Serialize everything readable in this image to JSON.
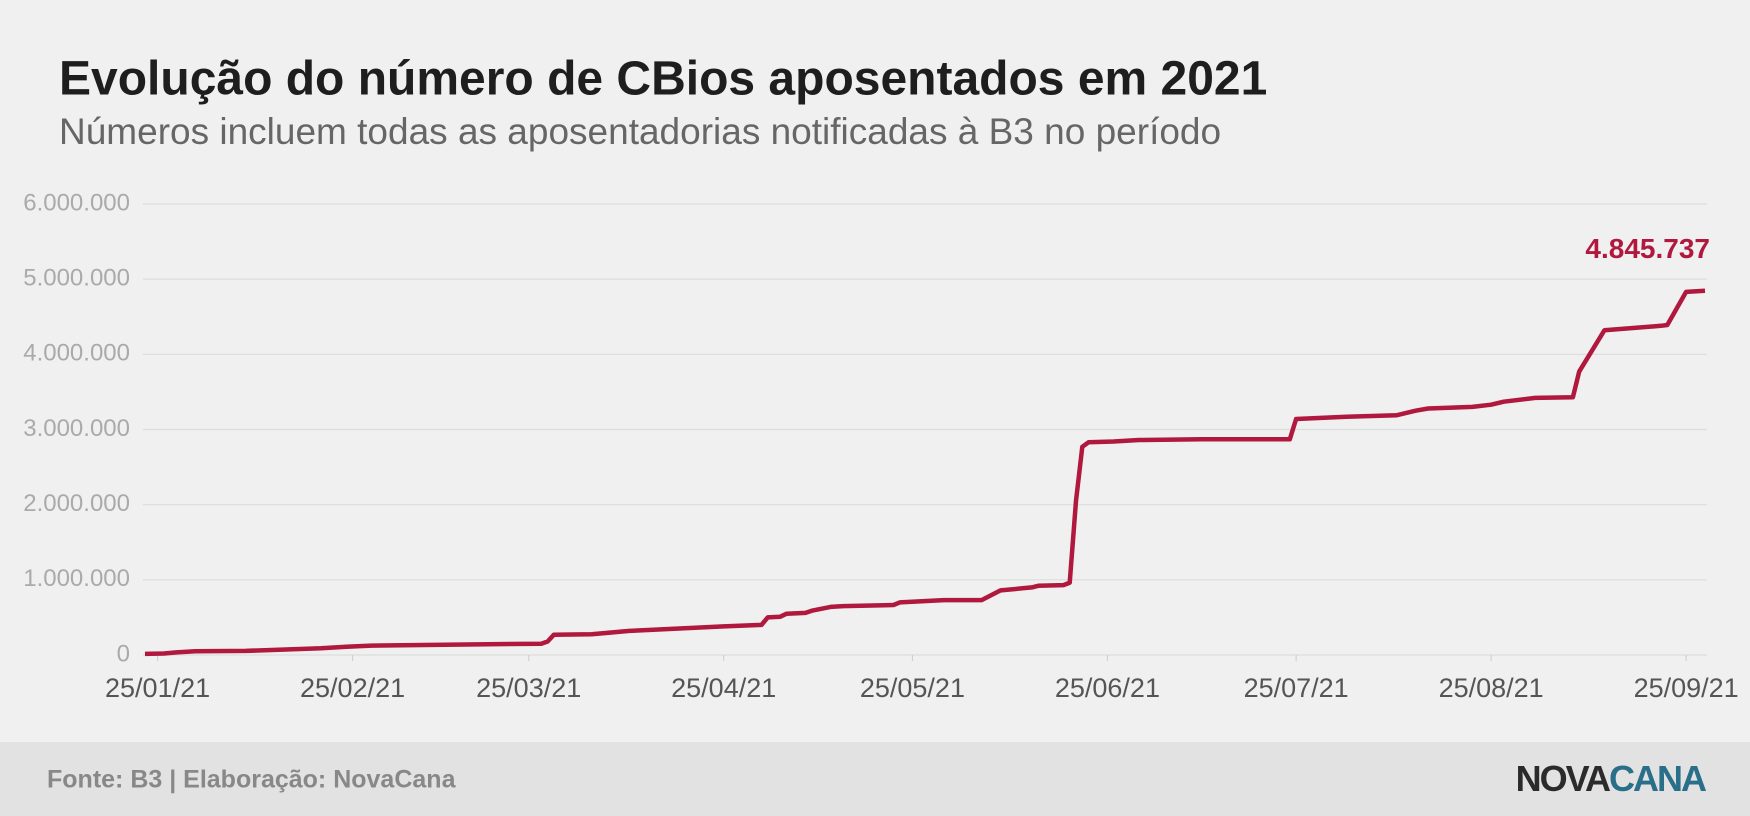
{
  "chart_data": {
    "type": "line",
    "title": "Evolução do número de CBios aposentados em 2021",
    "subtitle": "Números incluem todas as aposentadorias notificadas à B3 no período",
    "x": [
      "2021-01-23",
      "2021-01-26",
      "2021-01-28",
      "2021-01-31",
      "2021-02-08",
      "2021-02-20",
      "2021-02-24",
      "2021-02-28",
      "2021-03-15",
      "2021-03-27",
      "2021-03-28",
      "2021-03-29",
      "2021-04-04",
      "2021-04-10",
      "2021-04-25",
      "2021-05-01",
      "2021-05-02",
      "2021-05-04",
      "2021-05-05",
      "2021-05-08",
      "2021-05-09",
      "2021-05-12",
      "2021-05-14",
      "2021-05-22",
      "2021-05-23",
      "2021-05-30",
      "2021-06-05",
      "2021-06-08",
      "2021-06-13",
      "2021-06-14",
      "2021-06-18",
      "2021-06-19",
      "2021-06-20",
      "2021-06-21",
      "2021-06-22",
      "2021-06-26",
      "2021-06-30",
      "2021-07-10",
      "2021-07-24",
      "2021-07-25",
      "2021-08-02",
      "2021-08-10",
      "2021-08-13",
      "2021-08-15",
      "2021-08-22",
      "2021-08-25",
      "2021-08-27",
      "2021-09-01",
      "2021-09-07",
      "2021-09-08",
      "2021-09-12",
      "2021-09-21",
      "2021-09-22",
      "2021-09-25",
      "2021-09-28"
    ],
    "series": [
      {
        "name": "CBios aposentados",
        "color": "#b0183e",
        "values": [
          15000,
          20000,
          35000,
          50000,
          55000,
          90000,
          110000,
          125000,
          140000,
          150000,
          180000,
          270000,
          275000,
          320000,
          380000,
          400000,
          500000,
          510000,
          550000,
          560000,
          590000,
          640000,
          650000,
          665000,
          700000,
          730000,
          730000,
          860000,
          900000,
          920000,
          930000,
          960000,
          2050000,
          2770000,
          2830000,
          2840000,
          2860000,
          2870000,
          2870000,
          3140000,
          3170000,
          3190000,
          3250000,
          3280000,
          3300000,
          3330000,
          3370000,
          3420000,
          3430000,
          3770000,
          4320000,
          4380000,
          4390000,
          4830000,
          4845737
        ],
        "end_label": "4.845.737"
      }
    ],
    "xlim": [
      "2021-01-23",
      "2021-09-28"
    ],
    "xticks": [
      {
        "value": "2021-01-25",
        "label": "25/01/21"
      },
      {
        "value": "2021-02-25",
        "label": "25/02/21"
      },
      {
        "value": "2021-03-25",
        "label": "25/03/21"
      },
      {
        "value": "2021-04-25",
        "label": "25/04/21"
      },
      {
        "value": "2021-05-25",
        "label": "25/05/21"
      },
      {
        "value": "2021-06-25",
        "label": "25/06/21"
      },
      {
        "value": "2021-07-25",
        "label": "25/07/21"
      },
      {
        "value": "2021-08-25",
        "label": "25/08/21"
      },
      {
        "value": "2021-09-25",
        "label": "25/09/21"
      }
    ],
    "ylim": [
      0,
      6000000
    ],
    "yticks": [
      0,
      {
        "value": 1000000,
        "label": "1.000.000"
      },
      {
        "value": 2000000,
        "label": "2.000.000"
      },
      {
        "value": 3000000,
        "label": "3.000.000"
      },
      {
        "value": 4000000,
        "label": "4.000.000"
      },
      {
        "value": 5000000,
        "label": "5.000.000"
      },
      {
        "value": 6000000,
        "label": "6.000.000"
      }
    ],
    "grid": true
  },
  "footer": {
    "source": "Fonte: B3 | Elaboração: NovaCana",
    "logo": [
      "NOVA",
      "CANA"
    ]
  }
}
